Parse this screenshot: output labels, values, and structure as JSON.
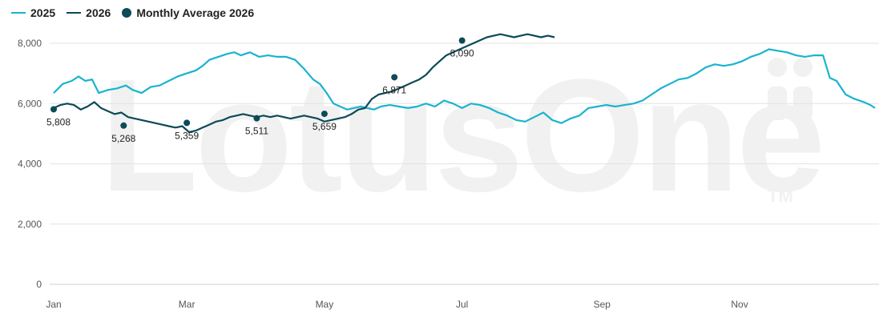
{
  "watermark": {
    "text": "LotusOne",
    "tm": "TM"
  },
  "legend": {
    "items": [
      {
        "label": "2025",
        "color": "#1ab3d0",
        "kind": "line"
      },
      {
        "label": "2026",
        "color": "#0c4a57",
        "kind": "line"
      },
      {
        "label": "Monthly Average 2026",
        "color": "#0c4a57",
        "kind": "dot"
      }
    ]
  },
  "chart_data": {
    "type": "line",
    "title": "",
    "xlabel": "",
    "ylabel": "",
    "ylim": [
      0,
      8000
    ],
    "xlim": [
      1,
      365
    ],
    "y_ticks": [
      {
        "value": 0,
        "label": "0"
      },
      {
        "value": 2000,
        "label": "2,000"
      },
      {
        "value": 4000,
        "label": "4,000"
      },
      {
        "value": 6000,
        "label": "6,000"
      },
      {
        "value": 8000,
        "label": "8,000"
      }
    ],
    "x_ticks": [
      {
        "day": 1,
        "label": "Jan"
      },
      {
        "day": 60,
        "label": "Mar"
      },
      {
        "day": 121,
        "label": "May"
      },
      {
        "day": 182,
        "label": "Jul"
      },
      {
        "day": 244,
        "label": "Sep"
      },
      {
        "day": 305,
        "label": "Nov"
      }
    ],
    "grid": true,
    "legend_position": "top-left",
    "series": [
      {
        "name": "2025",
        "color": "#1ab3d0",
        "points": [
          [
            1,
            6350
          ],
          [
            5,
            6650
          ],
          [
            9,
            6750
          ],
          [
            12,
            6900
          ],
          [
            15,
            6750
          ],
          [
            18,
            6800
          ],
          [
            21,
            6350
          ],
          [
            25,
            6450
          ],
          [
            29,
            6500
          ],
          [
            33,
            6600
          ],
          [
            36,
            6450
          ],
          [
            40,
            6350
          ],
          [
            44,
            6550
          ],
          [
            48,
            6600
          ],
          [
            52,
            6750
          ],
          [
            56,
            6900
          ],
          [
            60,
            7000
          ],
          [
            64,
            7100
          ],
          [
            67,
            7250
          ],
          [
            70,
            7450
          ],
          [
            74,
            7550
          ],
          [
            78,
            7650
          ],
          [
            81,
            7700
          ],
          [
            84,
            7600
          ],
          [
            88,
            7700
          ],
          [
            92,
            7550
          ],
          [
            96,
            7600
          ],
          [
            100,
            7550
          ],
          [
            104,
            7550
          ],
          [
            108,
            7450
          ],
          [
            112,
            7150
          ],
          [
            116,
            6800
          ],
          [
            119,
            6650
          ],
          [
            122,
            6350
          ],
          [
            125,
            6000
          ],
          [
            128,
            5900
          ],
          [
            131,
            5800
          ],
          [
            134,
            5850
          ],
          [
            137,
            5900
          ],
          [
            140,
            5850
          ],
          [
            143,
            5800
          ],
          [
            146,
            5900
          ],
          [
            150,
            5950
          ],
          [
            154,
            5900
          ],
          [
            158,
            5850
          ],
          [
            162,
            5900
          ],
          [
            166,
            6000
          ],
          [
            170,
            5900
          ],
          [
            174,
            6100
          ],
          [
            178,
            6000
          ],
          [
            182,
            5850
          ],
          [
            186,
            6000
          ],
          [
            190,
            5950
          ],
          [
            194,
            5850
          ],
          [
            198,
            5700
          ],
          [
            202,
            5600
          ],
          [
            206,
            5450
          ],
          [
            210,
            5400
          ],
          [
            214,
            5550
          ],
          [
            218,
            5700
          ],
          [
            222,
            5450
          ],
          [
            226,
            5350
          ],
          [
            230,
            5500
          ],
          [
            234,
            5600
          ],
          [
            238,
            5850
          ],
          [
            242,
            5900
          ],
          [
            246,
            5950
          ],
          [
            250,
            5900
          ],
          [
            254,
            5950
          ],
          [
            258,
            6000
          ],
          [
            262,
            6100
          ],
          [
            266,
            6300
          ],
          [
            270,
            6500
          ],
          [
            274,
            6650
          ],
          [
            278,
            6800
          ],
          [
            282,
            6850
          ],
          [
            286,
            7000
          ],
          [
            290,
            7200
          ],
          [
            294,
            7300
          ],
          [
            298,
            7250
          ],
          [
            302,
            7300
          ],
          [
            306,
            7400
          ],
          [
            310,
            7550
          ],
          [
            314,
            7650
          ],
          [
            318,
            7800
          ],
          [
            322,
            7750
          ],
          [
            326,
            7700
          ],
          [
            330,
            7600
          ],
          [
            334,
            7550
          ],
          [
            338,
            7600
          ],
          [
            342,
            7600
          ],
          [
            345,
            6850
          ],
          [
            348,
            6750
          ],
          [
            352,
            6300
          ],
          [
            356,
            6150
          ],
          [
            360,
            6050
          ],
          [
            363,
            5950
          ],
          [
            365,
            5850
          ]
        ]
      },
      {
        "name": "2026",
        "color": "#0c4a57",
        "points": [
          [
            1,
            5850
          ],
          [
            4,
            5950
          ],
          [
            7,
            6000
          ],
          [
            10,
            5950
          ],
          [
            13,
            5800
          ],
          [
            16,
            5900
          ],
          [
            19,
            6050
          ],
          [
            22,
            5850
          ],
          [
            25,
            5750
          ],
          [
            28,
            5650
          ],
          [
            31,
            5700
          ],
          [
            34,
            5550
          ],
          [
            37,
            5500
          ],
          [
            40,
            5450
          ],
          [
            43,
            5400
          ],
          [
            46,
            5350
          ],
          [
            49,
            5300
          ],
          [
            52,
            5250
          ],
          [
            55,
            5200
          ],
          [
            58,
            5250
          ],
          [
            61,
            5050
          ],
          [
            64,
            5100
          ],
          [
            67,
            5200
          ],
          [
            70,
            5300
          ],
          [
            73,
            5400
          ],
          [
            76,
            5450
          ],
          [
            79,
            5550
          ],
          [
            82,
            5600
          ],
          [
            85,
            5650
          ],
          [
            88,
            5600
          ],
          [
            91,
            5550
          ],
          [
            94,
            5600
          ],
          [
            97,
            5550
          ],
          [
            100,
            5600
          ],
          [
            103,
            5550
          ],
          [
            106,
            5500
          ],
          [
            109,
            5550
          ],
          [
            112,
            5600
          ],
          [
            115,
            5550
          ],
          [
            118,
            5500
          ],
          [
            121,
            5400
          ],
          [
            124,
            5450
          ],
          [
            127,
            5500
          ],
          [
            130,
            5550
          ],
          [
            133,
            5650
          ],
          [
            136,
            5800
          ],
          [
            139,
            5850
          ],
          [
            142,
            6150
          ],
          [
            145,
            6300
          ],
          [
            148,
            6350
          ],
          [
            151,
            6400
          ],
          [
            154,
            6500
          ],
          [
            157,
            6600
          ],
          [
            160,
            6700
          ],
          [
            163,
            6800
          ],
          [
            166,
            6950
          ],
          [
            169,
            7200
          ],
          [
            172,
            7400
          ],
          [
            175,
            7600
          ],
          [
            178,
            7700
          ],
          [
            181,
            7800
          ],
          [
            184,
            7900
          ],
          [
            187,
            8000
          ],
          [
            190,
            8100
          ],
          [
            193,
            8200
          ],
          [
            196,
            8250
          ],
          [
            199,
            8300
          ],
          [
            202,
            8250
          ],
          [
            205,
            8200
          ],
          [
            208,
            8250
          ],
          [
            211,
            8300
          ],
          [
            214,
            8250
          ],
          [
            217,
            8200
          ],
          [
            220,
            8250
          ],
          [
            223,
            8200
          ]
        ]
      },
      {
        "name": "Monthly Average 2026",
        "color": "#0c4a57",
        "markers": [
          {
            "day": 1,
            "value": 5808,
            "label": "5,808"
          },
          {
            "day": 32,
            "value": 5268,
            "label": "5,268"
          },
          {
            "day": 60,
            "value": 5359,
            "label": "5,359"
          },
          {
            "day": 91,
            "value": 5511,
            "label": "5,511"
          },
          {
            "day": 121,
            "value": 5659,
            "label": "5,659"
          },
          {
            "day": 152,
            "value": 6871,
            "label": "6,871"
          },
          {
            "day": 182,
            "value": 8090,
            "label": "8,090"
          }
        ]
      }
    ]
  }
}
